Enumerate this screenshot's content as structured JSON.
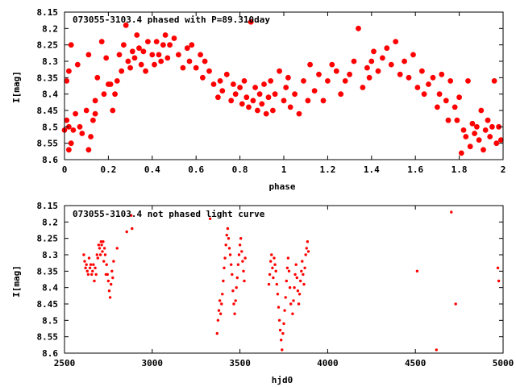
{
  "chart_data": [
    {
      "type": "scatter",
      "title": "073055-3103.4 phased with P=89.310day",
      "xlabel": "phase",
      "ylabel": "I[mag]",
      "xlim": [
        0,
        2
      ],
      "ylim": [
        8.6,
        8.15
      ],
      "y_inverted": true,
      "x_ticks": [
        "0",
        "0.2",
        "0.4",
        "0.6",
        "0.8",
        "1",
        "1.2",
        "1.4",
        "1.6",
        "1.8",
        "2"
      ],
      "y_ticks": [
        "8.15",
        "8.2",
        "8.25",
        "8.3",
        "8.35",
        "8.4",
        "8.45",
        "8.5",
        "8.55",
        "8.6"
      ],
      "marker": "filled-circle-large",
      "color": "#ff0000",
      "x": [
        0.0,
        0.01,
        0.01,
        0.02,
        0.02,
        0.02,
        0.03,
        0.03,
        0.04,
        0.05,
        0.06,
        0.07,
        0.08,
        0.1,
        0.11,
        0.11,
        0.12,
        0.13,
        0.14,
        0.14,
        0.15,
        0.17,
        0.18,
        0.19,
        0.2,
        0.21,
        0.22,
        0.23,
        0.24,
        0.25,
        0.26,
        0.27,
        0.28,
        0.29,
        0.3,
        0.31,
        0.32,
        0.33,
        0.34,
        0.35,
        0.36,
        0.37,
        0.38,
        0.4,
        0.41,
        0.42,
        0.43,
        0.44,
        0.45,
        0.46,
        0.47,
        0.48,
        0.5,
        0.52,
        0.54,
        0.56,
        0.57,
        0.58,
        0.6,
        0.62,
        0.63,
        0.64,
        0.66,
        0.68,
        0.7,
        0.71,
        0.72,
        0.74,
        0.76,
        0.77,
        0.78,
        0.8,
        0.81,
        0.82,
        0.83,
        0.84,
        0.85,
        0.86,
        0.87,
        0.88,
        0.89,
        0.9,
        0.91,
        0.92,
        0.93,
        0.94,
        0.95,
        0.96,
        0.98,
        1.0,
        1.01,
        1.02,
        1.03,
        1.05,
        1.07,
        1.09,
        1.11,
        1.12,
        1.14,
        1.16,
        1.18,
        1.2,
        1.22,
        1.24,
        1.26,
        1.28,
        1.3,
        1.32,
        1.34,
        1.36,
        1.38,
        1.39,
        1.4,
        1.41,
        1.43,
        1.45,
        1.47,
        1.49,
        1.51,
        1.53,
        1.55,
        1.57,
        1.59,
        1.61,
        1.63,
        1.64,
        1.66,
        1.68,
        1.7,
        1.71,
        1.72,
        1.74,
        1.75,
        1.76,
        1.78,
        1.79,
        1.8,
        1.81,
        1.82,
        1.83,
        1.84,
        1.85,
        1.86,
        1.87,
        1.88,
        1.89,
        1.9,
        1.91,
        1.92,
        1.93,
        1.94,
        1.95,
        1.96,
        1.97,
        1.98,
        1.99
      ],
      "y": [
        8.51,
        8.48,
        8.36,
        8.57,
        8.5,
        8.33,
        8.25,
        8.55,
        8.51,
        8.46,
        8.31,
        8.5,
        8.52,
        8.45,
        8.57,
        8.28,
        8.53,
        8.48,
        8.42,
        8.46,
        8.35,
        8.24,
        8.4,
        8.29,
        8.37,
        8.37,
        8.45,
        8.4,
        8.36,
        8.28,
        8.33,
        8.25,
        8.19,
        8.3,
        8.32,
        8.27,
        8.29,
        8.22,
        8.26,
        8.31,
        8.27,
        8.33,
        8.24,
        8.28,
        8.31,
        8.24,
        8.28,
        8.3,
        8.25,
        8.22,
        8.29,
        8.25,
        8.23,
        8.28,
        8.32,
        8.26,
        8.3,
        8.25,
        8.32,
        8.28,
        8.35,
        8.3,
        8.33,
        8.37,
        8.41,
        8.36,
        8.39,
        8.34,
        8.42,
        8.37,
        8.4,
        8.38,
        8.43,
        8.36,
        8.41,
        8.44,
        8.18,
        8.42,
        8.38,
        8.45,
        8.4,
        8.43,
        8.37,
        8.46,
        8.41,
        8.36,
        8.45,
        8.4,
        8.33,
        8.42,
        8.38,
        8.35,
        8.44,
        8.4,
        8.46,
        8.36,
        8.42,
        8.31,
        8.39,
        8.34,
        8.42,
        8.36,
        8.31,
        8.33,
        8.4,
        8.36,
        8.34,
        8.3,
        8.2,
        8.38,
        8.32,
        8.35,
        8.3,
        8.27,
        8.33,
        8.29,
        8.26,
        8.31,
        8.24,
        8.34,
        8.3,
        8.35,
        8.28,
        8.38,
        8.33,
        8.4,
        8.37,
        8.35,
        8.44,
        8.4,
        8.34,
        8.42,
        8.48,
        8.36,
        8.44,
        8.48,
        8.41,
        8.58,
        8.51,
        8.53,
        8.36,
        8.56,
        8.49,
        8.52,
        8.5,
        8.54,
        8.45,
        8.57,
        8.51,
        8.48,
        8.53,
        8.5,
        8.36,
        8.55,
        8.5,
        8.54
      ]
    },
    {
      "type": "scatter",
      "title": "073055-3103.4 not phased light curve",
      "xlabel": "hjd0",
      "ylabel": "I[mag]",
      "xlim": [
        2500,
        5000
      ],
      "ylim": [
        8.6,
        8.15
      ],
      "y_inverted": true,
      "x_ticks": [
        "2500",
        "3000",
        "3500",
        "4000",
        "4500",
        "5000"
      ],
      "y_ticks": [
        "8.15",
        "8.2",
        "8.25",
        "8.3",
        "8.35",
        "8.4",
        "8.45",
        "8.5",
        "8.55",
        "8.6"
      ],
      "marker": "filled-circle-small",
      "color": "#ff0000",
      "x": [
        2610,
        2615,
        2620,
        2625,
        2630,
        2635,
        2640,
        2645,
        2650,
        2655,
        2660,
        2665,
        2670,
        2675,
        2680,
        2685,
        2690,
        2695,
        2700,
        2705,
        2708,
        2712,
        2716,
        2720,
        2724,
        2728,
        2732,
        2736,
        2740,
        2745,
        2750,
        2755,
        2760,
        2765,
        2770,
        2775,
        2780,
        2800,
        2855,
        2880,
        2885,
        3330,
        3370,
        3375,
        3380,
        3385,
        3390,
        3395,
        3400,
        3405,
        3410,
        3415,
        3420,
        3425,
        3430,
        3435,
        3440,
        3445,
        3450,
        3455,
        3460,
        3465,
        3470,
        3475,
        3480,
        3485,
        3490,
        3495,
        3500,
        3505,
        3510,
        3515,
        3520,
        3525,
        3530,
        3665,
        3670,
        3675,
        3680,
        3685,
        3690,
        3695,
        3700,
        3705,
        3710,
        3715,
        3720,
        3725,
        3730,
        3735,
        3740,
        3745,
        3750,
        3755,
        3760,
        3765,
        3770,
        3775,
        3780,
        3785,
        3790,
        3800,
        3805,
        3810,
        3815,
        3820,
        3825,
        3830,
        3835,
        3840,
        3845,
        3850,
        3855,
        3860,
        3865,
        3870,
        3875,
        3880,
        3885,
        3890,
        4510,
        4620,
        4705,
        4730,
        4970,
        4975
      ],
      "y": [
        8.3,
        8.32,
        8.34,
        8.33,
        8.35,
        8.36,
        8.31,
        8.34,
        8.33,
        8.36,
        8.35,
        8.33,
        8.38,
        8.34,
        8.36,
        8.3,
        8.31,
        8.27,
        8.28,
        8.3,
        8.26,
        8.27,
        8.29,
        8.26,
        8.32,
        8.28,
        8.3,
        8.36,
        8.33,
        8.36,
        8.38,
        8.41,
        8.43,
        8.39,
        8.35,
        8.37,
        8.32,
        8.28,
        8.23,
        8.18,
        8.22,
        8.19,
        8.54,
        8.5,
        8.47,
        8.44,
        8.48,
        8.45,
        8.42,
        8.38,
        8.34,
        8.31,
        8.27,
        8.24,
        8.22,
        8.25,
        8.28,
        8.3,
        8.33,
        8.36,
        8.41,
        8.45,
        8.48,
        8.44,
        8.4,
        8.37,
        8.33,
        8.3,
        8.27,
        8.25,
        8.29,
        8.32,
        8.35,
        8.38,
        8.31,
        8.39,
        8.36,
        8.32,
        8.3,
        8.34,
        8.37,
        8.31,
        8.33,
        8.35,
        8.39,
        8.42,
        8.46,
        8.5,
        8.53,
        8.56,
        8.59,
        8.54,
        8.51,
        8.47,
        8.43,
        8.38,
        8.34,
        8.31,
        8.35,
        8.4,
        8.45,
        8.48,
        8.44,
        8.4,
        8.36,
        8.33,
        8.37,
        8.41,
        8.45,
        8.42,
        8.38,
        8.35,
        8.32,
        8.36,
        8.39,
        8.34,
        8.3,
        8.28,
        8.26,
        8.29,
        8.35,
        8.59,
        8.17,
        8.45,
        8.34,
        8.38
      ]
    }
  ]
}
